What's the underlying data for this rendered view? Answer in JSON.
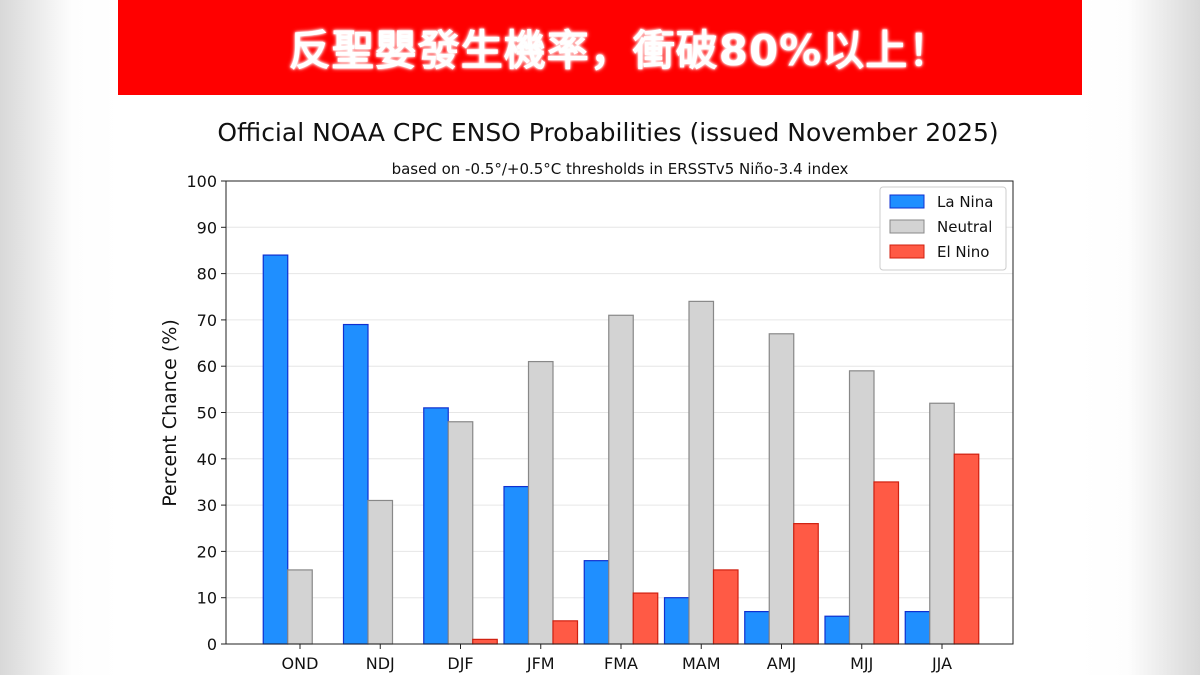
{
  "banner": {
    "text": "反聖嬰發生機率，衝破80%以上！",
    "color": "#ff0000"
  },
  "chart_data": {
    "type": "bar",
    "title": "Official NOAA CPC ENSO Probabilities (issued November 2025)",
    "subtitle": "based on -0.5°/+0.5°C thresholds in ERSSTv5 Niño-3.4 index",
    "xlabel": "",
    "ylabel": "Percent Chance (%)",
    "ylim": [
      0,
      100
    ],
    "yticks": [
      0,
      10,
      20,
      30,
      40,
      50,
      60,
      70,
      80,
      90,
      100
    ],
    "grid": true,
    "legend": "top-right",
    "categories": [
      "OND",
      "NDJ",
      "DJF",
      "JFM",
      "FMA",
      "MAM",
      "AMJ",
      "MJJ",
      "JJA"
    ],
    "series": [
      {
        "name": "La Nina",
        "color": "#1f8fff",
        "edge": "#1030d0",
        "values": [
          84,
          69,
          51,
          34,
          18,
          10,
          7,
          6,
          7
        ]
      },
      {
        "name": "Neutral",
        "color": "#d3d3d3",
        "edge": "#888888",
        "values": [
          16,
          31,
          48,
          61,
          71,
          74,
          67,
          59,
          52
        ]
      },
      {
        "name": "El Nino",
        "color": "#ff5a45",
        "edge": "#d02010",
        "values": [
          0,
          0,
          1,
          5,
          11,
          16,
          26,
          35,
          41
        ]
      }
    ]
  }
}
